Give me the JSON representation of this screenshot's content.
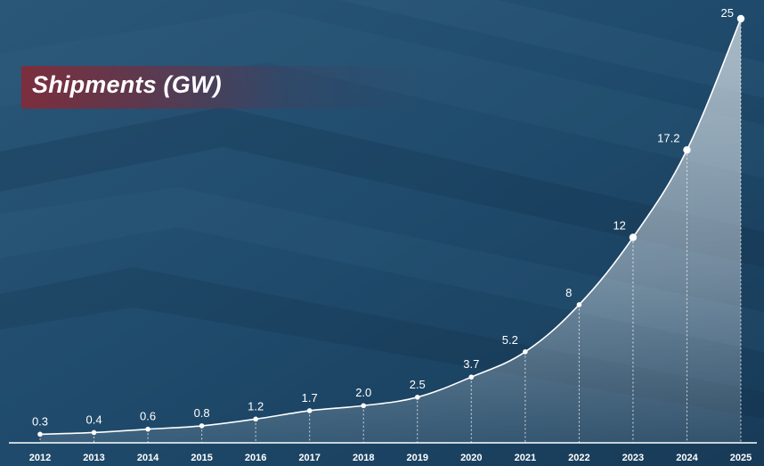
{
  "chart_data": {
    "type": "area",
    "title": "Shipments (GW)",
    "categories": [
      "2012",
      "2013",
      "2014",
      "2015",
      "2016",
      "2017",
      "2018",
      "2019",
      "2020",
      "2021",
      "2022",
      "2023",
      "2024",
      "2025"
    ],
    "series": [
      {
        "values": [
          0.3,
          0.4,
          0.6,
          0.8,
          1.2,
          1.7,
          2.0,
          2.5,
          3.7,
          5.2,
          8,
          12,
          17.2,
          25
        ],
        "labels": [
          "0.3",
          "0.4",
          "0.6",
          "0.8",
          "1.2",
          "1.7",
          "2.0",
          "2.5",
          "3.7",
          "5.2",
          "8",
          "12",
          "17.2",
          "25"
        ]
      }
    ],
    "ylim": [
      0,
      25
    ],
    "grid": false,
    "legend": "none",
    "colors": {
      "line": "#ffffff",
      "area": "#ffffff",
      "text": "#ffffff",
      "title_band": "#7e2c3a",
      "background": "#1d4666"
    }
  }
}
